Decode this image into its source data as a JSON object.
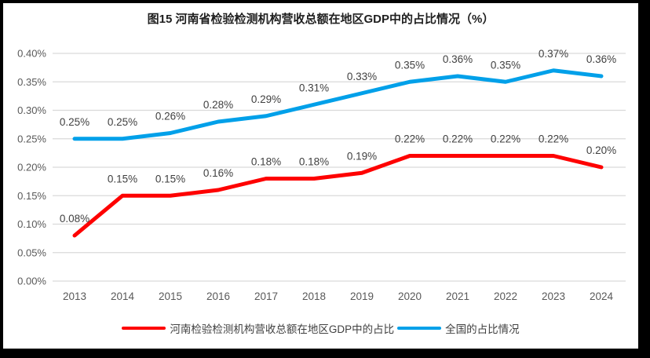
{
  "title": "图15  河南省检验检测机构营收总额在地区GDP中的占比情况（%）",
  "chart_data": {
    "type": "line",
    "title": "图15  河南省检验检测机构营收总额在地区GDP中的占比情况（%）",
    "categories": [
      "2013",
      "2014",
      "2015",
      "2016",
      "2017",
      "2018",
      "2019",
      "2020",
      "2021",
      "2022",
      "2023",
      "2024"
    ],
    "series": [
      {
        "name": "河南检验检测机构营收总额在地区GDP中的占比",
        "color": "#FE0000",
        "values": [
          0.08,
          0.15,
          0.15,
          0.16,
          0.18,
          0.18,
          0.19,
          0.22,
          0.22,
          0.22,
          0.22,
          0.2
        ],
        "data_labels": [
          "0.08%",
          "0.15%",
          "0.15%",
          "0.16%",
          "0.18%",
          "0.18%",
          "0.19%",
          "0.22%",
          "0.22%",
          "0.22%",
          "0.22%",
          "0.20%"
        ]
      },
      {
        "name": "全国的占比情况",
        "color": "#00A0E9",
        "values": [
          0.25,
          0.25,
          0.26,
          0.28,
          0.29,
          0.31,
          0.33,
          0.35,
          0.36,
          0.35,
          0.37,
          0.36
        ],
        "data_labels": [
          "0.25%",
          "0.25%",
          "0.26%",
          "0.28%",
          "0.29%",
          "0.31%",
          "0.33%",
          "0.35%",
          "0.36%",
          "0.35%",
          "0.37%",
          "0.36%"
        ]
      }
    ],
    "xlabel": "",
    "ylabel": "",
    "ylim": [
      0,
      0.4
    ],
    "ytick_step": 0.05,
    "ytick_labels": [
      "0.00%",
      "0.05%",
      "0.10%",
      "0.15%",
      "0.20%",
      "0.25%",
      "0.30%",
      "0.35%",
      "0.40%"
    ],
    "grid": true,
    "legend_position": "bottom",
    "colors": {
      "grid": "#D9D9D9",
      "axis_text": "#595959",
      "data_label": "#404040",
      "frame_border": "#000000",
      "background": "#FFFFFF"
    }
  }
}
